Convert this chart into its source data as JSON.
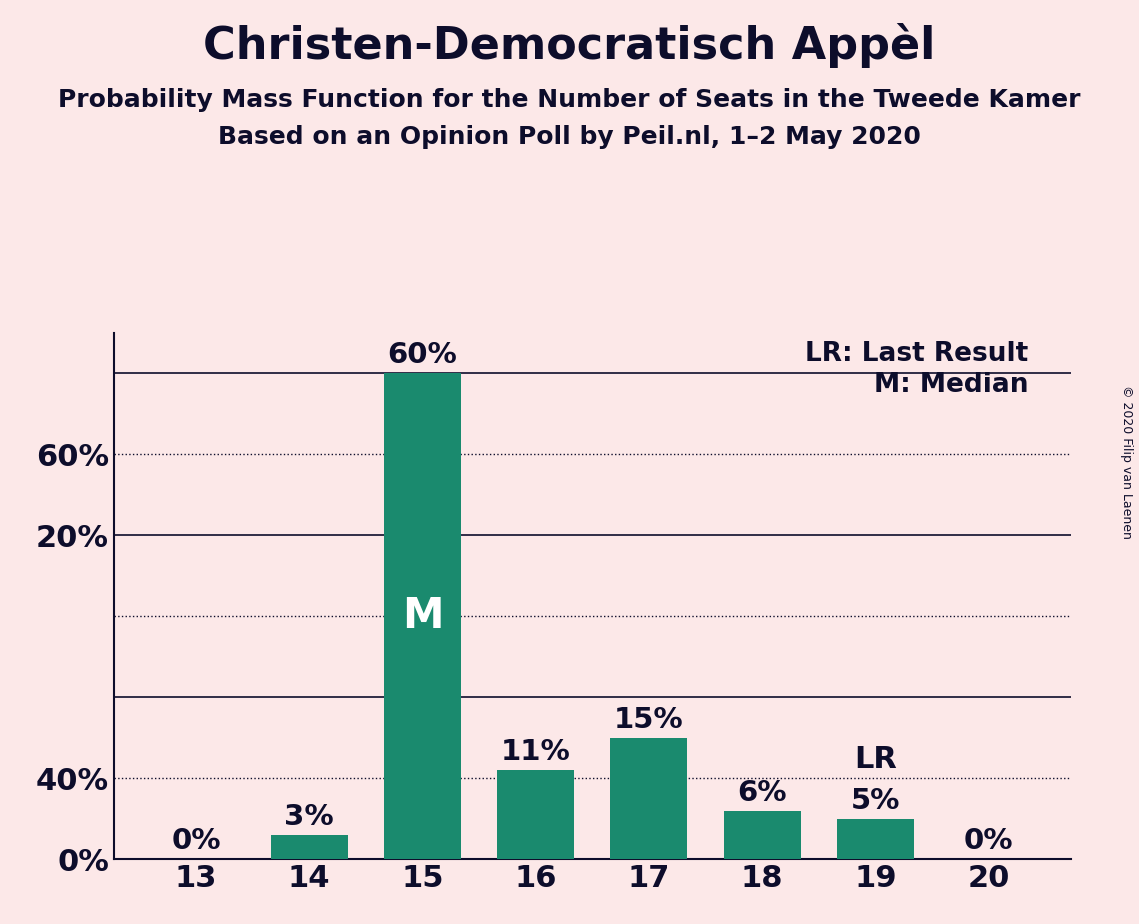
{
  "title": "Christen-Democratisch Appèl",
  "subtitle1": "Probability Mass Function for the Number of Seats in the Tweede Kamer",
  "subtitle2": "Based on an Opinion Poll by Peil.nl, 1–2 May 2020",
  "copyright": "© 2020 Filip van Laenen",
  "categories": [
    13,
    14,
    15,
    16,
    17,
    18,
    19,
    20
  ],
  "values": [
    0,
    3,
    60,
    11,
    15,
    6,
    5,
    0
  ],
  "bar_color": "#1a8a6e",
  "background_color": "#fce8e8",
  "text_color": "#0d0d2b",
  "median_seat": 15,
  "lr_seat": 19,
  "legend_lr": "LR: Last Result",
  "legend_m": "M: Median",
  "ylim": [
    0,
    65
  ],
  "solid_gridlines": [
    0,
    20,
    40,
    60
  ],
  "dotted_gridlines": [
    10,
    30,
    50
  ],
  "ytick_labels": [
    0,
    20,
    40,
    60
  ],
  "title_fontsize": 32,
  "subtitle_fontsize": 18,
  "tick_fontsize": 22,
  "annotation_fontsize": 21,
  "legend_fontsize": 19,
  "m_fontsize": 30,
  "lr_label_fontsize": 22,
  "copyright_fontsize": 9,
  "bar_width": 0.68
}
